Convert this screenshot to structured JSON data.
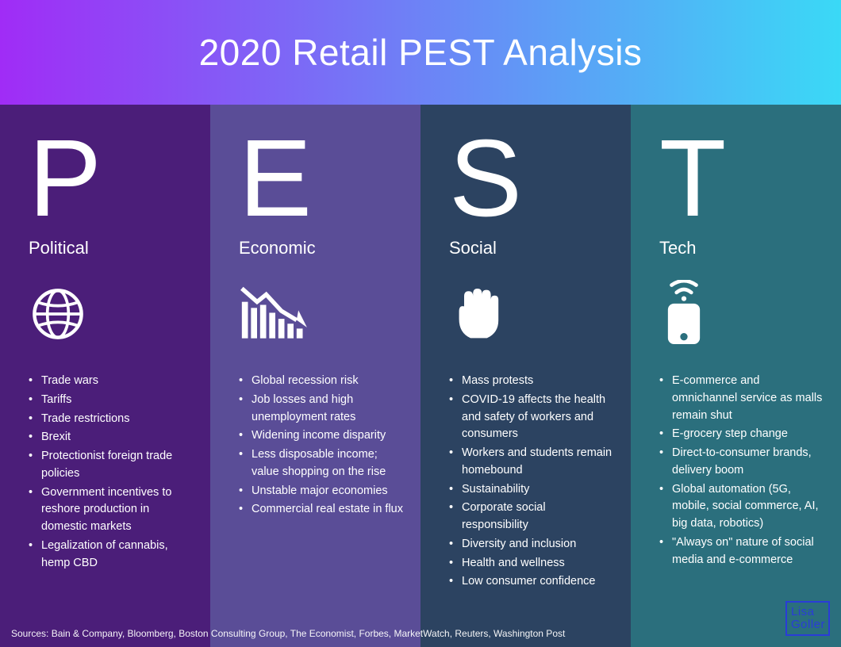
{
  "title": "2020 Retail PEST Analysis",
  "header_gradient": {
    "from": "#a02cf6",
    "to": "#3ad9f6"
  },
  "columns": [
    {
      "letter": "P",
      "label": "Political",
      "bg": "#4b1e79",
      "icon": "globe",
      "items": [
        "Trade wars",
        "Tariffs",
        "Trade restrictions",
        "Brexit",
        "Protectionist foreign trade policies",
        "Government incentives to reshore production in domestic markets",
        "Legalization of cannabis, hemp CBD"
      ]
    },
    {
      "letter": "E",
      "label": "Economic",
      "bg": "#5a4d97",
      "icon": "chart-down",
      "items": [
        "Global recession risk",
        "Job losses and high unemployment rates",
        "Widening income disparity",
        "Less disposable income; value shopping on the rise",
        "Unstable major economies",
        "Commercial real estate in flux"
      ]
    },
    {
      "letter": "S",
      "label": "Social",
      "bg": "#2c4361",
      "icon": "fist",
      "items": [
        "Mass protests",
        "COVID-19 affects the health and safety of workers and consumers",
        "Workers and students remain homebound",
        "Sustainability",
        "Corporate social responsibility",
        "Diversity and inclusion",
        "Health and wellness",
        "Low consumer confidence"
      ]
    },
    {
      "letter": "T",
      "label": "Tech",
      "bg": "#2b6f7d",
      "icon": "phone-signal",
      "items": [
        "E-commerce and omnichannel service as malls remain shut",
        "E-grocery step change",
        "Direct-to-consumer brands, delivery boom",
        "Global automation (5G, mobile, social commerce, AI, big data, robotics)",
        "\"Always on\" nature of social media and e-commerce"
      ]
    }
  ],
  "sources": "Sources: Bain & Company, Bloomberg, Boston Consulting Group, The Economist, Forbes, MarketWatch, Reuters, Washington Post",
  "logo": {
    "line1": "Lisa",
    "line2": "Goller"
  }
}
